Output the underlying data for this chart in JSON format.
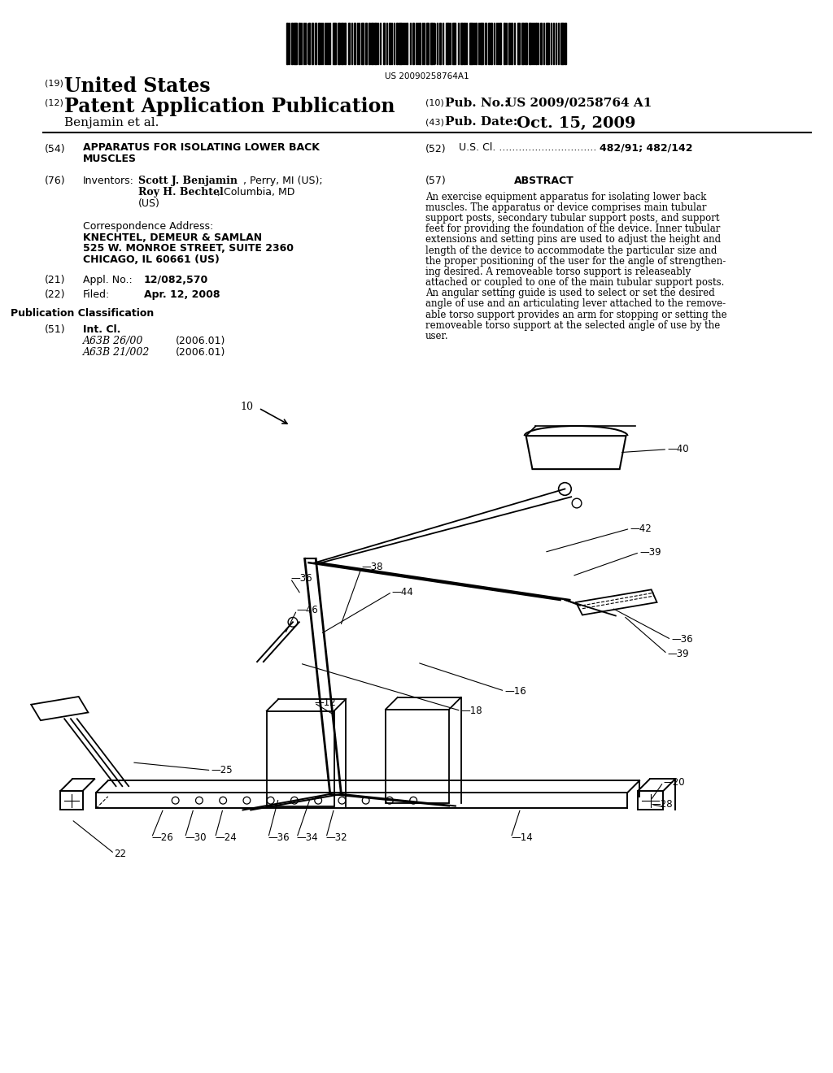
{
  "background_color": "#ffffff",
  "barcode_text": "US 20090258764A1",
  "header_19_text": "United States",
  "header_12_text": "Patent Application Publication",
  "header_10_val": "US 2009/0258764 A1",
  "header_43_val": "Oct. 15, 2009",
  "author_line": "Benjamin et al.",
  "field_54_line1": "APPARATUS FOR ISOLATING LOWER BACK",
  "field_54_line2": "MUSCLES",
  "field_52_dots": "U.S. Cl. ..............................",
  "field_52_val": "482/91; 482/142",
  "inventor1_bold": "Scott J. Benjamin",
  "inventor1_rest": ", Perry, MI (US);",
  "inventor2_bold": "Roy H. Bechtel",
  "inventor2_rest": ", Columbia, MD",
  "inventor3": "(US)",
  "abstract_title": "ABSTRACT",
  "abstract_text": "An exercise equipment apparatus for isolating lower back\nmuscles. The apparatus or device comprises main tubular\nsupport posts, secondary tubular support posts, and support\nfeet for providing the foundation of the device. Inner tubular\nextensions and setting pins are used to adjust the height and\nlength of the device to accommodate the particular size and\nthe proper positioning of the user for the angle of strengthen-\ning desired. A removeable torso support is releaseably\nattached or coupled to one of the main tubular support posts.\nAn angular setting guide is used to select or set the desired\nangle of use and an articulating lever attached to the remove-\nable torso support provides an arm for stopping or setting the\nremoveable torso support at the selected angle of use by the\nuser.",
  "corr_label": "Correspondence Address:",
  "corr_line1": "KNECHTEL, DEMEUR & SAMLAN",
  "corr_line2": "525 W. MONROE STREET, SUITE 2360",
  "corr_line3": "CHICAGO, IL 60661 (US)",
  "appl_no": "12/082,570",
  "filed_date": "Apr. 12, 2008",
  "pub_class_title": "Publication Classification",
  "int_cl_1": "A63B 26/00",
  "int_cl_2": "A63B 21/002",
  "int_cl_year": "(2006.01)"
}
